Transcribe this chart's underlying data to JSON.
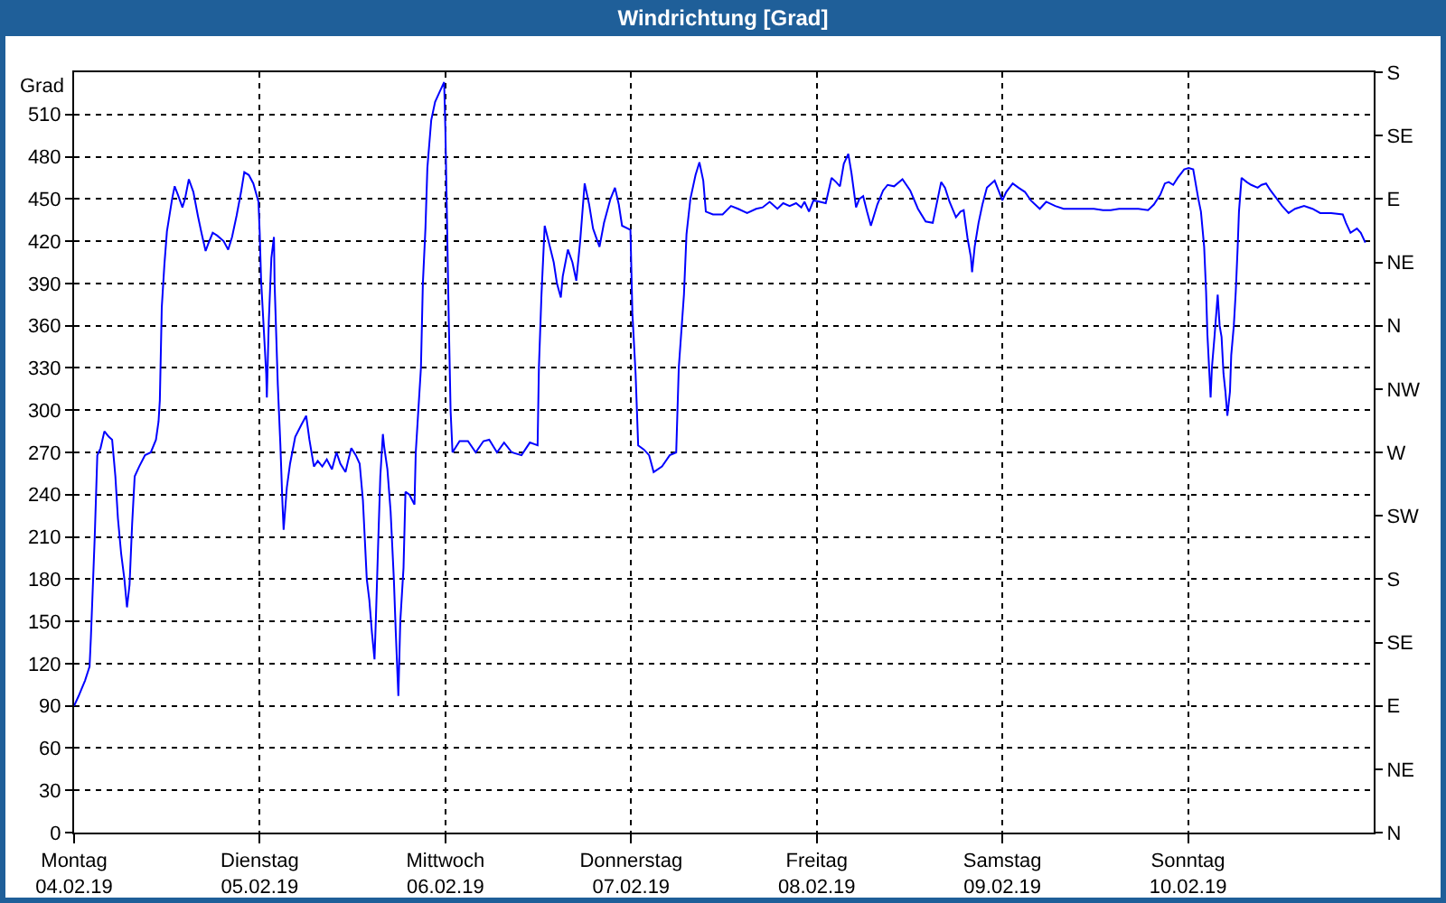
{
  "chart_data": {
    "type": "line",
    "title": "Windrichtung [Grad]",
    "ylabel": "Grad",
    "x": [
      "--02-04T00:00",
      "--02-04T00:35",
      "--02-04T01:25",
      "--02-04T02:00",
      "--02-04T02:10",
      "--02-04T02:25",
      "--02-04T02:40",
      "--02-04T03:00",
      "--02-04T03:25",
      "--02-04T03:55",
      "--02-04T04:30",
      "--02-04T04:55",
      "--02-04T05:20",
      "--02-04T05:40",
      "--02-04T06:05",
      "--02-04T06:30",
      "--02-04T06:50",
      "--02-04T07:10",
      "--02-04T07:30",
      "--02-04T07:50",
      "--02-04T08:25",
      "--02-04T09:10",
      "--02-04T09:55",
      "--02-04T10:35",
      "--02-04T10:55",
      "--02-04T11:05",
      "--02-04T11:20",
      "--02-04T11:40",
      "--02-04T12:00",
      "--02-04T12:40",
      "--02-04T13:00",
      "--02-04T13:25",
      "--02-04T14:00",
      "--02-04T14:20",
      "--02-04T14:50",
      "--02-04T15:25",
      "--02-04T16:00",
      "--02-04T16:30",
      "--02-04T17:00",
      "--02-04T17:20",
      "--02-04T17:55",
      "--02-04T18:30",
      "--02-04T19:20",
      "--02-04T19:55",
      "--02-04T20:25",
      "--02-04T21:00",
      "--02-04T21:35",
      "--02-04T22:00",
      "--02-04T22:35",
      "--02-04T23:10",
      "--02-04T23:50",
      "--02-05T00:00",
      "--02-05T00:10",
      "--02-05T00:50",
      "--02-05T00:55",
      "--02-05T01:10",
      "--02-05T01:30",
      "--02-05T01:50",
      "--02-05T01:55",
      "--02-05T02:20",
      "--02-05T02:40",
      "--02-05T02:55",
      "--02-05T03:05",
      "--02-05T03:30",
      "--02-05T03:55",
      "--02-05T04:35",
      "--02-05T05:25",
      "--02-05T06:00",
      "--02-05T06:25",
      "--02-05T07:00",
      "--02-05T07:30",
      "--02-05T08:05",
      "--02-05T08:40",
      "--02-05T09:20",
      "--02-05T09:55",
      "--02-05T10:25",
      "--02-05T11:05",
      "--02-05T11:25",
      "--02-05T11:50",
      "--02-05T12:25",
      "--02-05T12:55",
      "--02-05T13:20",
      "--02-05T13:50",
      "--02-05T14:10",
      "--02-05T14:30",
      "--02-05T14:50",
      "--02-05T15:00",
      "--02-05T15:20",
      "--02-05T15:35",
      "--02-05T15:55",
      "--02-05T16:05",
      "--02-05T16:30",
      "--02-05T16:55",
      "--02-05T17:20",
      "--02-05T17:35",
      "--02-05T17:55",
      "--02-05T18:10",
      "--02-05T18:35",
      "--02-05T18:50",
      "--02-05T19:20",
      "--02-05T20:00",
      "--02-05T20:10",
      "--02-05T20:30",
      "--02-05T20:50",
      "--02-05T21:05",
      "--02-05T21:25",
      "--02-05T21:40",
      "--02-05T22:10",
      "--02-05T22:40",
      "--02-05T23:10",
      "--02-05T23:50",
      "--02-06T00:00",
      "--02-06T00:25",
      "--02-06T00:40",
      "--02-06T00:55",
      "--02-06T01:50",
      "--02-06T02:55",
      "--02-06T03:55",
      "--02-06T04:55",
      "--02-06T05:40",
      "--02-06T06:40",
      "--02-06T07:35",
      "--02-06T08:35",
      "--02-06T09:50",
      "--02-06T10:55",
      "--02-06T11:55",
      "--02-06T12:05",
      "--02-06T12:25",
      "--02-06T12:50",
      "--02-06T13:20",
      "--02-06T14:00",
      "--02-06T14:25",
      "--02-06T14:55",
      "--02-06T15:10",
      "--02-06T15:50",
      "--02-06T16:25",
      "--02-06T16:55",
      "--02-06T17:25",
      "--02-06T18:00",
      "--02-06T18:35",
      "--02-06T19:05",
      "--02-06T19:55",
      "--02-06T20:30",
      "--02-06T21:20",
      "--02-06T21:55",
      "--02-06T22:25",
      "--02-06T22:50",
      "--02-06T23:35",
      "--02-06T23:55",
      "--02-07T00:10",
      "--02-07T00:35",
      "--02-07T00:55",
      "--02-07T01:40",
      "--02-07T02:20",
      "--02-07T02:55",
      "--02-07T04:00",
      "--02-07T05:00",
      "--02-07T05:50",
      "--02-07T06:10",
      "--02-07T06:50",
      "--02-07T07:10",
      "--02-07T07:40",
      "--02-07T08:20",
      "--02-07T08:50",
      "--02-07T09:20",
      "--02-07T09:40",
      "--02-07T10:35",
      "--02-07T11:50",
      "--02-07T12:55",
      "--02-07T13:50",
      "--02-07T15:00",
      "--02-07T16:10",
      "--02-07T17:00",
      "--02-07T17:55",
      "--02-07T18:55",
      "--02-07T19:40",
      "--02-07T20:30",
      "--02-07T21:20",
      "--02-07T22:00",
      "--02-07T22:25",
      "--02-07T23:00",
      "--02-07T23:35",
      "--02-08T00:25",
      "--02-08T01:10",
      "--02-08T01:55",
      "--02-08T02:30",
      "--02-08T03:00",
      "--02-08T03:30",
      "--02-08T04:05",
      "--02-08T04:30",
      "--02-08T05:05",
      "--02-08T05:30",
      "--02-08T06:00",
      "--02-08T06:30",
      "--02-08T07:00",
      "--02-08T07:50",
      "--02-08T08:35",
      "--02-08T09:10",
      "--02-08T10:00",
      "--02-08T11:05",
      "--02-08T12:05",
      "--02-08T13:05",
      "--02-08T14:05",
      "--02-08T15:00",
      "--02-08T16:05",
      "--02-08T16:35",
      "--02-08T17:10",
      "--02-08T18:00",
      "--02-08T18:35",
      "--02-08T19:00",
      "--02-08T19:30",
      "--02-08T19:55",
      "--02-08T20:05",
      "--02-08T20:25",
      "--02-08T20:55",
      "--02-08T21:25",
      "--02-08T22:00",
      "--02-08T23:00",
      "--02-08T23:30",
      "--02-09T00:00",
      "--02-09T00:30",
      "--02-09T01:20",
      "--02-09T02:05",
      "--02-09T02:55",
      "--02-09T03:40",
      "--02-09T04:50",
      "--02-09T05:40",
      "--02-09T06:50",
      "--02-09T07:55",
      "--02-09T09:30",
      "--02-09T11:50",
      "--02-09T13:00",
      "--02-09T14:00",
      "--02-09T15:05",
      "--02-09T17:35",
      "--02-09T18:50",
      "--02-09T19:35",
      "--02-09T20:25",
      "--02-09T21:00",
      "--02-09T21:30",
      "--02-09T22:05",
      "--02-09T22:40",
      "--02-09T23:30",
      "--02-10T00:05",
      "--02-10T00:40",
      "--02-10T01:20",
      "--02-10T01:40",
      "--02-10T02:05",
      "--02-10T02:20",
      "--02-10T02:30",
      "--02-10T02:55",
      "--02-10T03:05",
      "--02-10T03:25",
      "--02-10T03:50",
      "--02-10T04:05",
      "--02-10T04:20",
      "--02-10T04:35",
      "--02-10T04:50",
      "--02-10T05:05",
      "--02-10T05:25",
      "--02-10T05:35",
      "--02-10T05:55",
      "--02-10T06:10",
      "--02-10T06:25",
      "--02-10T06:35",
      "--02-10T06:55",
      "--02-10T07:35",
      "--02-10T08:10",
      "--02-10T09:00",
      "--02-10T09:30",
      "--02-10T10:05",
      "--02-10T10:40",
      "--02-10T11:30",
      "--02-10T12:10",
      "--02-10T13:00",
      "--02-10T13:50",
      "--02-10T15:00",
      "--02-10T16:05",
      "--02-10T17:05",
      "--02-10T18:30",
      "--02-10T20:00",
      "--02-10T20:25",
      "--02-10T21:00",
      "--02-10T21:50",
      "--02-10T22:20",
      "--02-10T22:55"
    ],
    "series": [
      {
        "color": "#0000ff",
        "values": [
          90,
          97,
          108,
          118,
          138,
          174,
          210,
          268,
          273,
          285,
          281,
          279,
          253,
          223,
          198,
          180,
          160,
          176,
          219,
          253,
          260,
          268,
          270,
          279,
          292,
          307,
          373,
          403,
          427,
          450,
          459,
          453,
          444,
          450,
          464,
          455,
          438,
          425,
          413,
          418,
          426,
          424,
          420,
          414,
          423,
          438,
          455,
          469,
          467,
          461,
          448,
          425,
          393,
          326,
          309,
          363,
          408,
          423,
          390,
          318,
          275,
          236,
          215,
          245,
          262,
          281,
          290,
          296,
          279,
          260,
          264,
          260,
          265,
          258,
          270,
          262,
          256,
          264,
          273,
          268,
          262,
          236,
          180,
          165,
          142,
          123,
          150,
          210,
          253,
          283,
          274,
          258,
          228,
          180,
          142,
          97,
          150,
          188,
          242,
          240,
          233,
          270,
          300,
          330,
          390,
          429,
          472,
          506,
          519,
          525,
          533,
          498,
          369,
          300,
          270,
          278,
          278,
          270,
          278,
          279,
          270,
          277,
          270,
          268,
          277,
          275,
          330,
          382,
          431,
          420,
          405,
          390,
          380,
          395,
          414,
          405,
          392,
          420,
          461,
          446,
          429,
          416,
          433,
          450,
          458,
          446,
          431,
          429,
          428,
          369,
          326,
          275,
          272,
          268,
          256,
          260,
          268,
          270,
          330,
          382,
          425,
          450,
          467,
          476,
          463,
          441,
          439,
          439,
          445,
          443,
          440,
          443,
          444,
          448,
          443,
          447,
          445,
          447,
          444,
          448,
          441,
          449,
          448,
          447,
          465,
          462,
          459,
          475,
          482,
          468,
          444,
          450,
          452,
          441,
          431,
          446,
          456,
          460,
          459,
          464,
          456,
          443,
          434,
          433,
          462,
          458,
          448,
          437,
          441,
          442,
          422,
          409,
          398,
          416,
          433,
          446,
          458,
          463,
          456,
          449,
          455,
          461,
          458,
          455,
          449,
          443,
          448,
          445,
          443,
          443,
          443,
          442,
          442,
          443,
          443,
          442,
          446,
          453,
          461,
          462,
          460,
          465,
          471,
          472,
          471,
          450,
          441,
          416,
          384,
          354,
          309,
          330,
          352,
          382,
          360,
          352,
          326,
          313,
          296,
          313,
          339,
          360,
          384,
          416,
          441,
          465,
          462,
          460,
          458,
          460,
          461,
          456,
          450,
          445,
          440,
          443,
          445,
          443,
          440,
          440,
          439,
          433,
          426,
          429,
          426,
          419
        ]
      }
    ],
    "xlim": [
      "--02-04",
      "--02-11"
    ],
    "xticks": [
      {
        "value": "--02-04",
        "label": "Montag\n04.02.19"
      },
      {
        "value": "--02-05",
        "label": "Dienstag\n05.02.19"
      },
      {
        "value": "--02-06",
        "label": "Mittwoch\n06.02.19"
      },
      {
        "value": "--02-07",
        "label": "Donnerstag\n07.02.19"
      },
      {
        "value": "--02-08",
        "label": "Freitag\n08.02.19"
      },
      {
        "value": "--02-09",
        "label": "Samstag\n09.02.19"
      },
      {
        "value": "--02-10",
        "label": "Sonntag\n10.02.19"
      }
    ],
    "ylim": [
      0,
      540
    ],
    "yticks": [
      0,
      30,
      60,
      90,
      120,
      150,
      180,
      210,
      240,
      270,
      300,
      330,
      360,
      390,
      420,
      450,
      480,
      510
    ],
    "y2_categories": [
      "S",
      "SE",
      "E",
      "NE",
      "N",
      "NW",
      "W",
      "SW",
      "S",
      "SE",
      "E",
      "NE",
      "N"
    ],
    "grid": true,
    "marker": "none",
    "line_style": "solid"
  }
}
